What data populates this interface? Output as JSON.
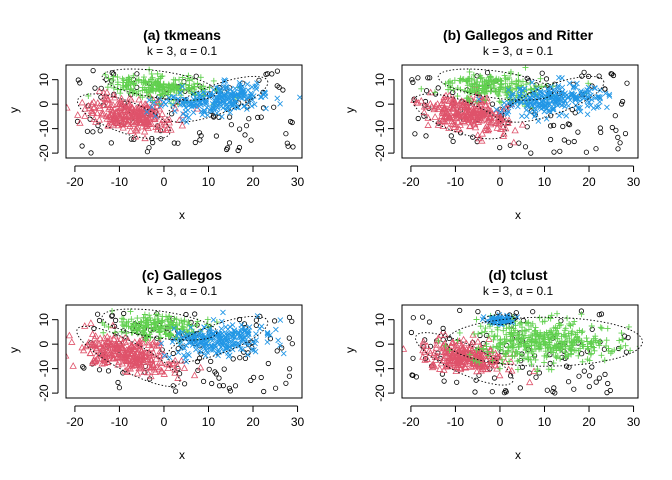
{
  "chart_data": [
    {
      "type": "scatter",
      "title": "(a) tkmeans",
      "subtitle": "k = 3, α = 0.1",
      "xlabel": "x",
      "ylabel": "y",
      "xlim": [
        -22,
        31
      ],
      "ylim": [
        -22,
        16
      ],
      "xticks": [
        -20,
        -10,
        0,
        10,
        20,
        30
      ],
      "yticks": [
        -20,
        -10,
        0,
        10
      ],
      "clusters": [
        {
          "color": "#DF536B",
          "marker": "triangle",
          "center": [
            -8,
            -4
          ],
          "spread": [
            5.0,
            3.2
          ],
          "rotation": -22,
          "n": 260,
          "ellipse": {
            "cx": -9,
            "cy": -5,
            "rx": 11,
            "ry": 6.5,
            "rotation": -20
          }
        },
        {
          "color": "#61D04F",
          "marker": "plus",
          "center": [
            -1,
            7
          ],
          "spread": [
            6.0,
            2.6
          ],
          "rotation": -8,
          "n": 220,
          "ellipse": {
            "cx": -1,
            "cy": 8,
            "rx": 13,
            "ry": 5.5,
            "rotation": -8
          }
        },
        {
          "color": "#2297E6",
          "marker": "x",
          "center": [
            12,
            2
          ],
          "spread": [
            6.0,
            3.0
          ],
          "rotation": 14,
          "n": 240,
          "ellipse": {
            "cx": 12,
            "cy": 2,
            "rx": 12,
            "ry": 6,
            "rotation": 20
          }
        }
      ]
    },
    {
      "type": "scatter",
      "title": "(b) Gallegos and Ritter",
      "subtitle": "k = 3, α = 0.1",
      "xlabel": "x",
      "ylabel": "y",
      "xlim": [
        -22,
        31
      ],
      "ylim": [
        -22,
        16
      ],
      "xticks": [
        -20,
        -10,
        0,
        10,
        20,
        30
      ],
      "yticks": [
        -20,
        -10,
        0,
        10
      ],
      "clusters": [
        {
          "color": "#DF536B",
          "marker": "triangle",
          "center": [
            -8,
            -4
          ],
          "spread": [
            5.0,
            3.2
          ],
          "rotation": -22,
          "n": 260,
          "ellipse": {
            "cx": -9,
            "cy": -5,
            "rx": 11,
            "ry": 6.5,
            "rotation": -20
          }
        },
        {
          "color": "#61D04F",
          "marker": "plus",
          "center": [
            -1,
            7
          ],
          "spread": [
            6.0,
            2.6
          ],
          "rotation": -8,
          "n": 220,
          "ellipse": {
            "cx": -1,
            "cy": 8,
            "rx": 13,
            "ry": 5.5,
            "rotation": -8
          }
        },
        {
          "color": "#2297E6",
          "marker": "x",
          "center": [
            12,
            2
          ],
          "spread": [
            6.0,
            3.0
          ],
          "rotation": 14,
          "n": 240,
          "ellipse": {
            "cx": 12,
            "cy": 2,
            "rx": 12,
            "ry": 6,
            "rotation": 20
          }
        }
      ]
    },
    {
      "type": "scatter",
      "title": "(c) Gallegos",
      "subtitle": "k = 3, α = 0.1",
      "xlabel": "x",
      "ylabel": "y",
      "xlim": [
        -22,
        31
      ],
      "ylim": [
        -22,
        16
      ],
      "xticks": [
        -20,
        -10,
        0,
        10,
        20,
        30
      ],
      "yticks": [
        -20,
        -10,
        0,
        10
      ],
      "clusters": [
        {
          "color": "#DF536B",
          "marker": "triangle",
          "center": [
            -8,
            -4
          ],
          "spread": [
            5.5,
            3.0
          ],
          "rotation": -30,
          "n": 280,
          "ellipse": {
            "cx": -8,
            "cy": -5,
            "rx": 13,
            "ry": 6,
            "rotation": -28
          }
        },
        {
          "color": "#61D04F",
          "marker": "plus",
          "center": [
            -1,
            7
          ],
          "spread": [
            5.5,
            2.4
          ],
          "rotation": -8,
          "n": 200,
          "ellipse": {
            "cx": -1,
            "cy": 8,
            "rx": 13,
            "ry": 5.5,
            "rotation": -8
          }
        },
        {
          "color": "#2297E6",
          "marker": "x",
          "center": [
            12,
            2
          ],
          "spread": [
            6.0,
            3.0
          ],
          "rotation": 14,
          "n": 240,
          "ellipse": {
            "cx": 12,
            "cy": 2,
            "rx": 12,
            "ry": 6,
            "rotation": 20
          }
        }
      ]
    },
    {
      "type": "scatter",
      "title": "(d) tclust",
      "subtitle": "k = 3, α = 0.1",
      "xlabel": "x",
      "ylabel": "y",
      "xlim": [
        -22,
        31
      ],
      "ylim": [
        -22,
        16
      ],
      "xticks": [
        -20,
        -10,
        0,
        10,
        20,
        30
      ],
      "yticks": [
        -20,
        -10,
        0,
        10
      ],
      "clusters": [
        {
          "color": "#DF536B",
          "marker": "triangle",
          "center": [
            -8,
            -5
          ],
          "spread": [
            5.0,
            3.0
          ],
          "rotation": -25,
          "n": 260,
          "ellipse": {
            "cx": -8,
            "cy": -6,
            "rx": 12,
            "ry": 6,
            "rotation": -25
          }
        },
        {
          "color": "#61D04F",
          "marker": "plus",
          "center": [
            9,
            1
          ],
          "spread": [
            8.0,
            4.5
          ],
          "rotation": 0,
          "n": 420,
          "ellipse": {
            "cx": 10,
            "cy": 1,
            "rx": 22,
            "ry": 10,
            "rotation": 0
          }
        },
        {
          "color": "#2297E6",
          "marker": "x",
          "center": [
            0,
            10
          ],
          "spread": [
            1.6,
            0.9
          ],
          "rotation": 0,
          "n": 60,
          "ellipse": {
            "cx": 0,
            "cy": 10,
            "rx": 3.5,
            "ry": 2,
            "rotation": 0
          }
        }
      ]
    }
  ]
}
